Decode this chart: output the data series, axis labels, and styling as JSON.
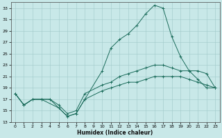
{
  "xlabel": "Humidex (Indice chaleur)",
  "background_color": "#c8e8e8",
  "grid_color": "#a0c8c8",
  "line_color": "#1a6b5a",
  "xlim": [
    -0.5,
    23.5
  ],
  "ylim": [
    13,
    34
  ],
  "yticks": [
    13,
    15,
    17,
    19,
    21,
    23,
    25,
    27,
    29,
    31,
    33
  ],
  "xticks": [
    0,
    1,
    2,
    3,
    4,
    5,
    6,
    7,
    8,
    9,
    10,
    11,
    12,
    13,
    14,
    15,
    16,
    17,
    18,
    19,
    20,
    21,
    22,
    23
  ],
  "line1_x": [
    0,
    1,
    2,
    3,
    5,
    6,
    7,
    8,
    10,
    11,
    12,
    13,
    14,
    15,
    16,
    17,
    18,
    19,
    20,
    21,
    22,
    23
  ],
  "line1_y": [
    18,
    16,
    17,
    17,
    15.5,
    14,
    14.5,
    17,
    22,
    26,
    27.5,
    28.5,
    30,
    32,
    33.5,
    33,
    28,
    24.5,
    22,
    20.5,
    19,
    19
  ],
  "line2_x": [
    0,
    1,
    2,
    3,
    4,
    5,
    6,
    7,
    8,
    10,
    11,
    12,
    13,
    14,
    15,
    16,
    17,
    18,
    19,
    20,
    21,
    22,
    23
  ],
  "line2_y": [
    18,
    16,
    17,
    17,
    17,
    16,
    14.5,
    15,
    18,
    19.5,
    20,
    21,
    21.5,
    22,
    22.5,
    23,
    23,
    22.5,
    22,
    22,
    22,
    21.5,
    19
  ],
  "line3_x": [
    0,
    1,
    2,
    3,
    4,
    5,
    6,
    7,
    8,
    10,
    11,
    12,
    13,
    14,
    15,
    16,
    17,
    18,
    19,
    20,
    21,
    22,
    23
  ],
  "line3_y": [
    18,
    16,
    17,
    17,
    17,
    15.5,
    14,
    14.5,
    17,
    18.5,
    19,
    19.5,
    20,
    20,
    20.5,
    21,
    21,
    21,
    21,
    20.5,
    20,
    19.5,
    19
  ]
}
